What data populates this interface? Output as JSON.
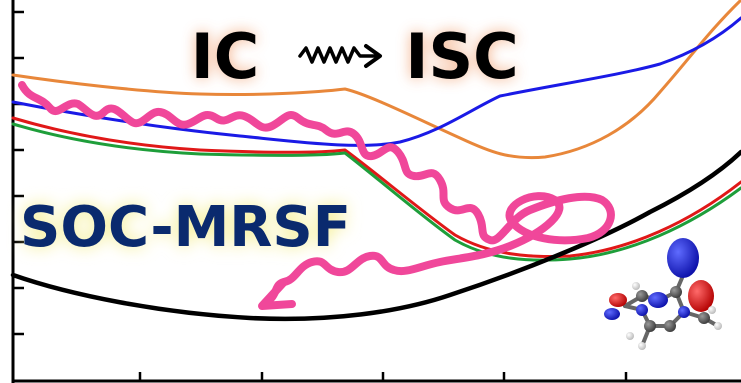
{
  "title": {
    "left": "IC",
    "right": "ISC"
  },
  "method_label": "SOC-MRSF",
  "colors": {
    "orange_curve": "#E8873A",
    "blue_curve": "#1A1AE6",
    "red_curve": "#E01818",
    "green_curve": "#1E9E3A",
    "black_curve": "#000000",
    "trajectory": "#F0479A",
    "title_text": "#000000",
    "title_glow": "#F2A679",
    "method_text": "#0A2A6E",
    "method_glow": "#F4EE8A"
  },
  "icons": {
    "title_arrow": "wavy-arrow-icon",
    "molecule": "molecule-icon"
  }
}
